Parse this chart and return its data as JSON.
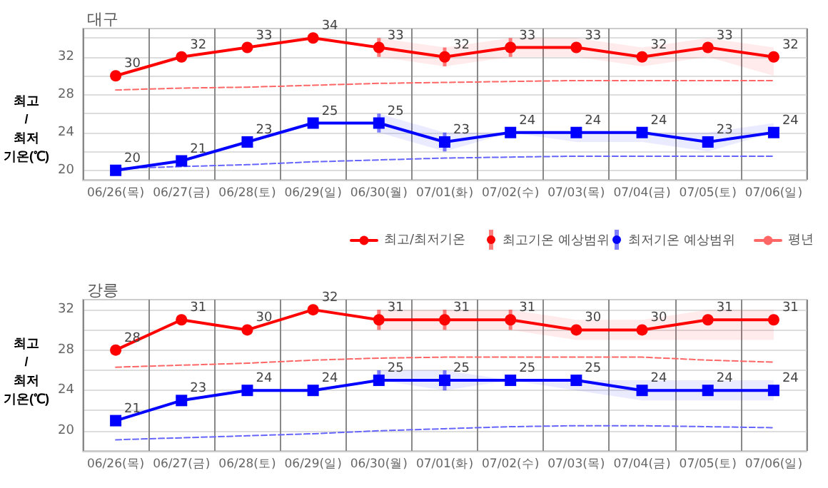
{
  "chart_data": [
    {
      "type": "line",
      "title": "대구",
      "ylabel": "최고/최저 기온(℃)",
      "categories": [
        "06/26(목)",
        "06/27(금)",
        "06/28(토)",
        "06/29(일)",
        "06/30(월)",
        "07/01(화)",
        "07/02(수)",
        "07/03(목)",
        "07/04(금)",
        "07/05(토)",
        "07/06(일)"
      ],
      "series": [
        {
          "name": "최고/최저기온",
          "color": "#ff0000",
          "marker": "circle",
          "values": [
            30,
            32,
            33,
            34,
            33,
            32,
            33,
            33,
            32,
            33,
            32
          ],
          "value_labels": [
            "30",
            "32",
            "33",
            "34",
            "33",
            "32",
            "33",
            "33",
            "32",
            "33",
            "32"
          ],
          "lower": [
            null,
            null,
            null,
            null,
            32,
            31,
            32,
            32,
            31,
            32,
            30
          ],
          "upper": [
            null,
            null,
            null,
            null,
            34,
            33,
            34,
            34,
            33,
            34,
            33
          ]
        },
        {
          "color": "#0000ff",
          "marker": "square",
          "values": [
            20,
            21,
            23,
            25,
            25,
            23,
            24,
            24,
            24,
            23,
            24
          ],
          "value_labels": [
            "20",
            "21",
            "23",
            "25",
            "25",
            "23",
            "24",
            "24",
            "24",
            "23",
            "24"
          ],
          "lower": [
            null,
            null,
            null,
            null,
            24,
            22,
            24,
            23,
            23,
            22,
            24
          ],
          "upper": [
            null,
            null,
            null,
            null,
            26,
            24,
            24,
            24,
            24,
            24,
            25
          ]
        },
        {
          "name": "평년",
          "color": "#ff6666",
          "line_style": "dashed",
          "marker": "none",
          "values": [
            28.5,
            28.7,
            28.8,
            29.0,
            29.2,
            29.3,
            29.4,
            29.5,
            29.5,
            29.5,
            29.5
          ]
        },
        {
          "color": "#6666ff",
          "line_style": "dashed",
          "marker": "none",
          "values": [
            20.2,
            20.4,
            20.6,
            20.9,
            21.1,
            21.3,
            21.4,
            21.5,
            21.5,
            21.5,
            21.5
          ]
        }
      ],
      "annotations": [
        "최고기온 예상범위",
        "최저기온 예상범위"
      ],
      "ylim": [
        19,
        35
      ],
      "yticks": [
        20,
        {
          "value": 22,
          "label": null
        },
        24,
        {
          "value": 26,
          "label": null
        },
        28,
        {
          "value": 30,
          "label": null
        },
        32,
        {
          "value": 34,
          "label": null
        }
      ],
      "grid": true,
      "legend": "bottom right"
    },
    {
      "type": "line",
      "title": "강릉",
      "ylabel": "최고/최저 기온(℃)",
      "categories": [
        "06/26(목)",
        "06/27(금)",
        "06/28(토)",
        "06/29(일)",
        "06/30(월)",
        "07/01(화)",
        "07/02(수)",
        "07/03(목)",
        "07/04(금)",
        "07/05(토)",
        "07/06(일)"
      ],
      "series": [
        {
          "color": "#ff0000",
          "marker": "circle",
          "values": [
            28,
            31,
            30,
            32,
            31,
            31,
            31,
            30,
            30,
            31,
            31
          ],
          "value_labels": [
            "28",
            "31",
            "30",
            "32",
            "31",
            "31",
            "31",
            "30",
            "30",
            "31",
            "31"
          ],
          "lower": [
            null,
            null,
            null,
            null,
            30,
            30,
            30,
            29,
            29,
            29,
            29
          ],
          "upper": [
            null,
            null,
            null,
            null,
            32,
            32,
            32,
            31,
            31,
            32,
            32
          ]
        },
        {
          "color": "#0000ff",
          "marker": "square",
          "values": [
            21,
            23,
            24,
            24,
            25,
            25,
            25,
            25,
            24,
            24,
            24
          ],
          "value_labels": [
            "21",
            "23",
            "24",
            "24",
            "25",
            "25",
            "25",
            "25",
            "24",
            "24",
            "24"
          ],
          "lower": [
            null,
            null,
            null,
            null,
            25,
            24,
            25,
            24,
            23,
            23,
            23
          ],
          "upper": [
            null,
            null,
            null,
            null,
            26,
            26,
            25,
            25,
            25,
            25,
            25
          ]
        },
        {
          "color": "#ff6666",
          "line_style": "dashed",
          "marker": "none",
          "values": [
            26.3,
            26.5,
            26.7,
            27.0,
            27.2,
            27.3,
            27.3,
            27.3,
            27.3,
            27.0,
            26.8
          ]
        },
        {
          "color": "#6666ff",
          "line_style": "dashed",
          "marker": "none",
          "values": [
            19.1,
            19.3,
            19.5,
            19.7,
            20.0,
            20.2,
            20.4,
            20.5,
            20.5,
            20.4,
            20.3
          ]
        }
      ],
      "ylim": [
        18,
        33
      ],
      "yticks": [
        20,
        {
          "value": 22,
          "label": null
        },
        24,
        {
          "value": 26,
          "label": null
        },
        28,
        {
          "value": 30,
          "label": null
        },
        32
      ],
      "grid": true
    }
  ]
}
